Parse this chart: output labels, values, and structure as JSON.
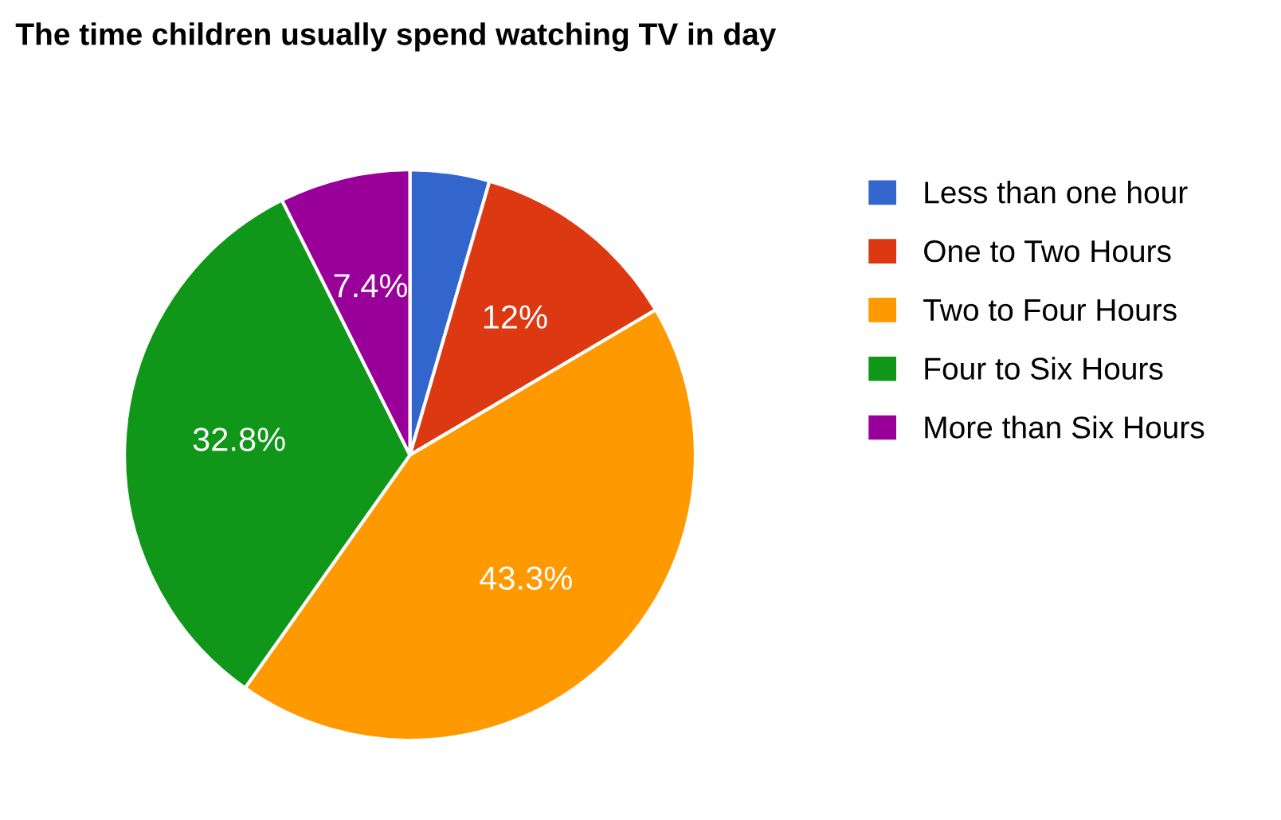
{
  "chart_data": {
    "type": "pie",
    "title": "The time children usually spend watching TV in day",
    "categories": [
      "Less than one hour",
      "One to Two Hours",
      "Two to Four Hours",
      "Four to Six Hours",
      "More than Six Hours"
    ],
    "values": [
      4.5,
      12,
      43.3,
      32.8,
      7.4
    ],
    "value_labels": [
      null,
      "12%",
      "43.3%",
      "32.8%",
      "7.4%"
    ],
    "colors": [
      "#3366cc",
      "#dc3912",
      "#ff9900",
      "#109618",
      "#990099"
    ],
    "legend": "right"
  }
}
